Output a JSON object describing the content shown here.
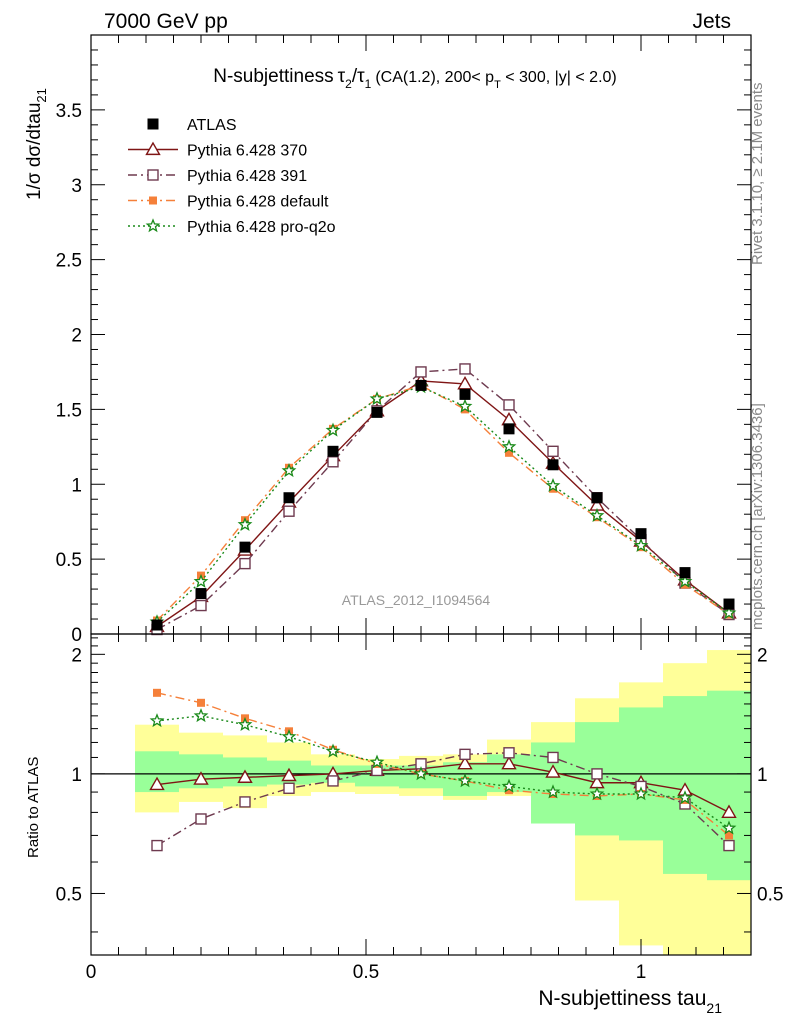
{
  "header": {
    "left": "7000 GeV pp",
    "right": "Jets"
  },
  "side_text": {
    "rivet": "Rivet 3.1.10, ≥ 2.1M events",
    "mcplots": "mcplots.cern.ch [arXiv:1306.3436]"
  },
  "title": {
    "main": "N-subjettiness",
    "tau_num": "τ",
    "tau_num_sub": "2",
    "slash": "/",
    "tau_den": "τ",
    "tau_den_sub": "1",
    "cut_a": "(CA(1.2), 200< p",
    "cut_sub": "T",
    "cut_b": " < 300, |y| < 2.0)"
  },
  "watermark": "ATLAS_2012_I1094564",
  "ylabel_main": {
    "text": "1/σ dσ/dtau",
    "sub": "21"
  },
  "ylabel_ratio": "Ratio to ATLAS",
  "xlabel": {
    "text": "N-subjettiness tau",
    "sub": "21"
  },
  "colors": {
    "atlas": "#000000",
    "p370": "#7f1515",
    "p391": "#6e3a4f",
    "pdefault": "#f5803a",
    "pq2o": "#1a8a1a",
    "band_inner": "#99ff99",
    "band_outer": "#ffff99"
  },
  "chart_data": {
    "type": "line",
    "x": [
      0.12,
      0.2,
      0.28,
      0.36,
      0.44,
      0.52,
      0.6,
      0.68,
      0.76,
      0.84,
      0.92,
      1.0,
      1.08,
      1.16
    ],
    "bin_edges": [
      0.08,
      0.16,
      0.24,
      0.32,
      0.4,
      0.48,
      0.56,
      0.64,
      0.72,
      0.8,
      0.88,
      0.96,
      1.04,
      1.12,
      1.2
    ],
    "xlim": [
      0,
      1.2
    ],
    "main": {
      "ylim": [
        0,
        4.0
      ],
      "yticks": [
        0,
        0.5,
        1,
        1.5,
        2,
        2.5,
        3,
        3.5
      ],
      "ytick_labels": [
        "0",
        "0.5",
        "1",
        "1.5",
        "2",
        "2.5",
        "3",
        "3.5"
      ]
    },
    "ratio": {
      "ylim": [
        0.35,
        2.25
      ],
      "yticks": [
        0.5,
        1,
        2
      ],
      "ytick_labels": [
        "0.5",
        "1",
        "2"
      ],
      "band_inner": [
        [
          0.9,
          1.14
        ],
        [
          0.92,
          1.12
        ],
        [
          0.93,
          1.1
        ],
        [
          0.94,
          1.08
        ],
        [
          0.95,
          1.05
        ],
        [
          0.93,
          1.05
        ],
        [
          0.92,
          1.05
        ],
        [
          0.88,
          1.07
        ],
        [
          0.9,
          1.12
        ],
        [
          0.75,
          1.2
        ],
        [
          0.7,
          1.35
        ],
        [
          0.68,
          1.47
        ],
        [
          0.56,
          1.57
        ],
        [
          0.54,
          1.62
        ]
      ],
      "band_outer": [
        [
          0.8,
          1.33
        ],
        [
          0.85,
          1.27
        ],
        [
          0.82,
          1.25
        ],
        [
          0.88,
          1.2
        ],
        [
          0.9,
          1.12
        ],
        [
          0.89,
          1.09
        ],
        [
          0.88,
          1.11
        ],
        [
          0.86,
          1.12
        ],
        [
          0.88,
          1.22
        ],
        [
          0.76,
          1.35
        ],
        [
          0.48,
          1.55
        ],
        [
          0.37,
          1.7
        ],
        [
          0.35,
          1.9
        ],
        [
          0.34,
          2.05
        ]
      ]
    },
    "xticks": [
      0,
      0.5,
      1
    ],
    "xtick_labels": [
      "0",
      "0.5",
      "1"
    ],
    "series": [
      {
        "name": "ATLAS",
        "key": "atlas",
        "marker": "square-filled",
        "line": "none",
        "values": [
          0.06,
          0.27,
          0.58,
          0.91,
          1.22,
          1.48,
          1.66,
          1.6,
          1.37,
          1.13,
          0.91,
          0.67,
          0.41,
          0.2
        ],
        "ratio": [
          1,
          1,
          1,
          1,
          1,
          1,
          1,
          1,
          1,
          1,
          1,
          1,
          1,
          1
        ]
      },
      {
        "name": "Pythia 6.428 370",
        "key": "p370",
        "marker": "triangle-open",
        "line": "solid",
        "values": [
          0.05,
          0.25,
          0.56,
          0.88,
          1.19,
          1.49,
          1.69,
          1.67,
          1.43,
          1.14,
          0.86,
          0.62,
          0.36,
          0.14
        ],
        "ratio": [
          0.94,
          0.97,
          0.98,
          0.99,
          1.0,
          1.02,
          1.03,
          1.06,
          1.06,
          1.01,
          0.95,
          0.95,
          0.91,
          0.8
        ]
      },
      {
        "name": "Pythia 6.428 391",
        "key": "p391",
        "marker": "square-open",
        "line": "dashdot",
        "values": [
          0.03,
          0.19,
          0.47,
          0.82,
          1.15,
          1.49,
          1.75,
          1.77,
          1.53,
          1.22,
          0.91,
          0.63,
          0.34,
          0.13
        ],
        "ratio": [
          0.66,
          0.77,
          0.85,
          0.92,
          0.96,
          1.02,
          1.06,
          1.12,
          1.13,
          1.1,
          1.0,
          0.93,
          0.84,
          0.66
        ]
      },
      {
        "name": "Pythia 6.428 default",
        "key": "pdefault",
        "marker": "square-filled-small",
        "line": "dashdot",
        "values": [
          0.09,
          0.39,
          0.76,
          1.11,
          1.37,
          1.57,
          1.66,
          1.5,
          1.21,
          0.97,
          0.78,
          0.58,
          0.33,
          0.13
        ],
        "ratio": [
          1.6,
          1.51,
          1.38,
          1.28,
          1.15,
          1.06,
          1.0,
          0.96,
          0.91,
          0.89,
          0.88,
          0.89,
          0.86,
          0.7
        ]
      },
      {
        "name": "Pythia 6.428 pro-q2o",
        "key": "pq2o",
        "marker": "star-open",
        "line": "dotted",
        "values": [
          0.08,
          0.35,
          0.73,
          1.09,
          1.36,
          1.57,
          1.65,
          1.52,
          1.25,
          0.99,
          0.79,
          0.59,
          0.35,
          0.14
        ],
        "ratio": [
          1.36,
          1.4,
          1.33,
          1.24,
          1.14,
          1.07,
          1.0,
          0.96,
          0.93,
          0.9,
          0.89,
          0.89,
          0.87,
          0.73
        ]
      }
    ]
  }
}
